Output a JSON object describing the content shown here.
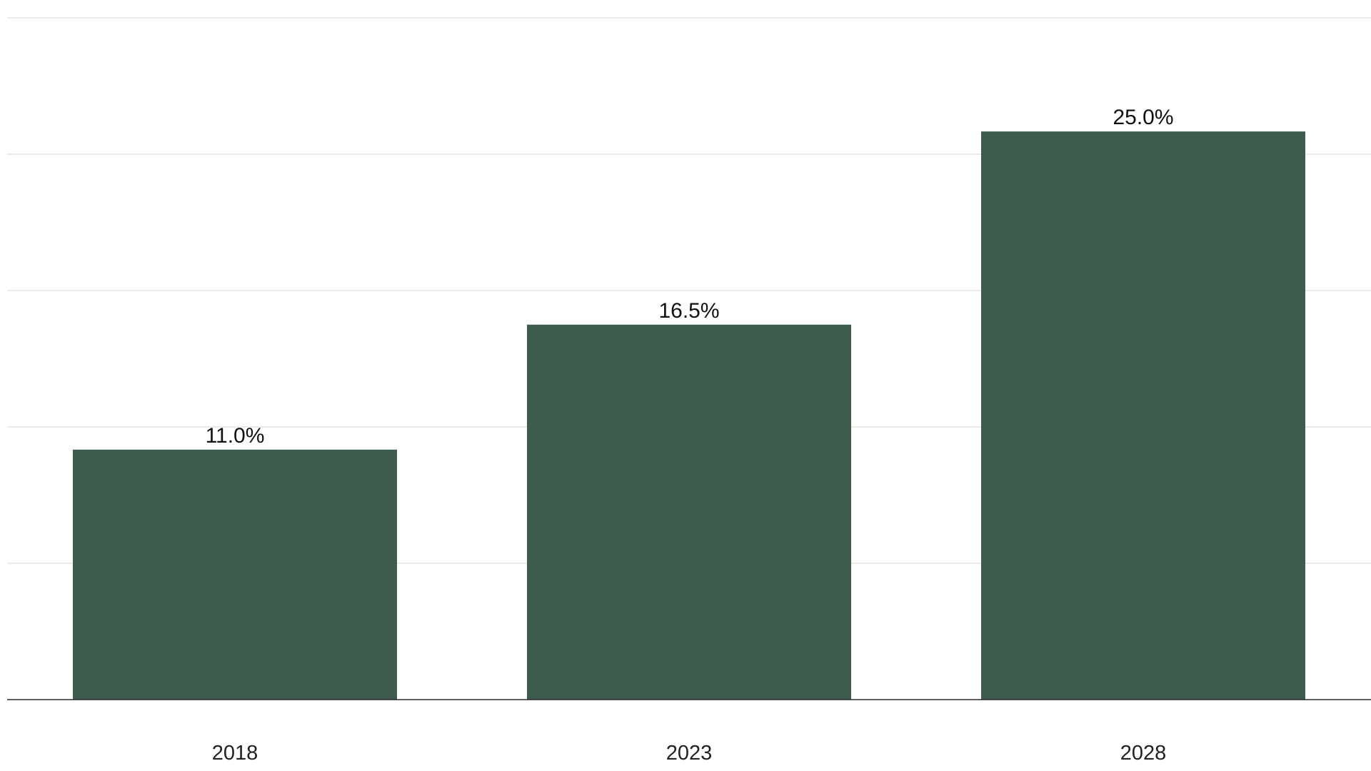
{
  "chart_data": {
    "type": "bar",
    "title": "",
    "xlabel": "",
    "ylabel": "",
    "categories": [
      "2018",
      "2023",
      "2028"
    ],
    "values": [
      11.0,
      16.5,
      25.0
    ],
    "value_labels": [
      "11.0%",
      "16.5%",
      "25.0%"
    ],
    "ylim": [
      0,
      30
    ],
    "grid": true,
    "y_tick_values": [
      0,
      6,
      12,
      18,
      24,
      30
    ],
    "y_tick_labels_shown": false,
    "legend": "none",
    "colors": {
      "bar": "#3d5c4e",
      "grid": "#dedede",
      "axis": "#2b2b2b",
      "text": "#111111"
    }
  }
}
